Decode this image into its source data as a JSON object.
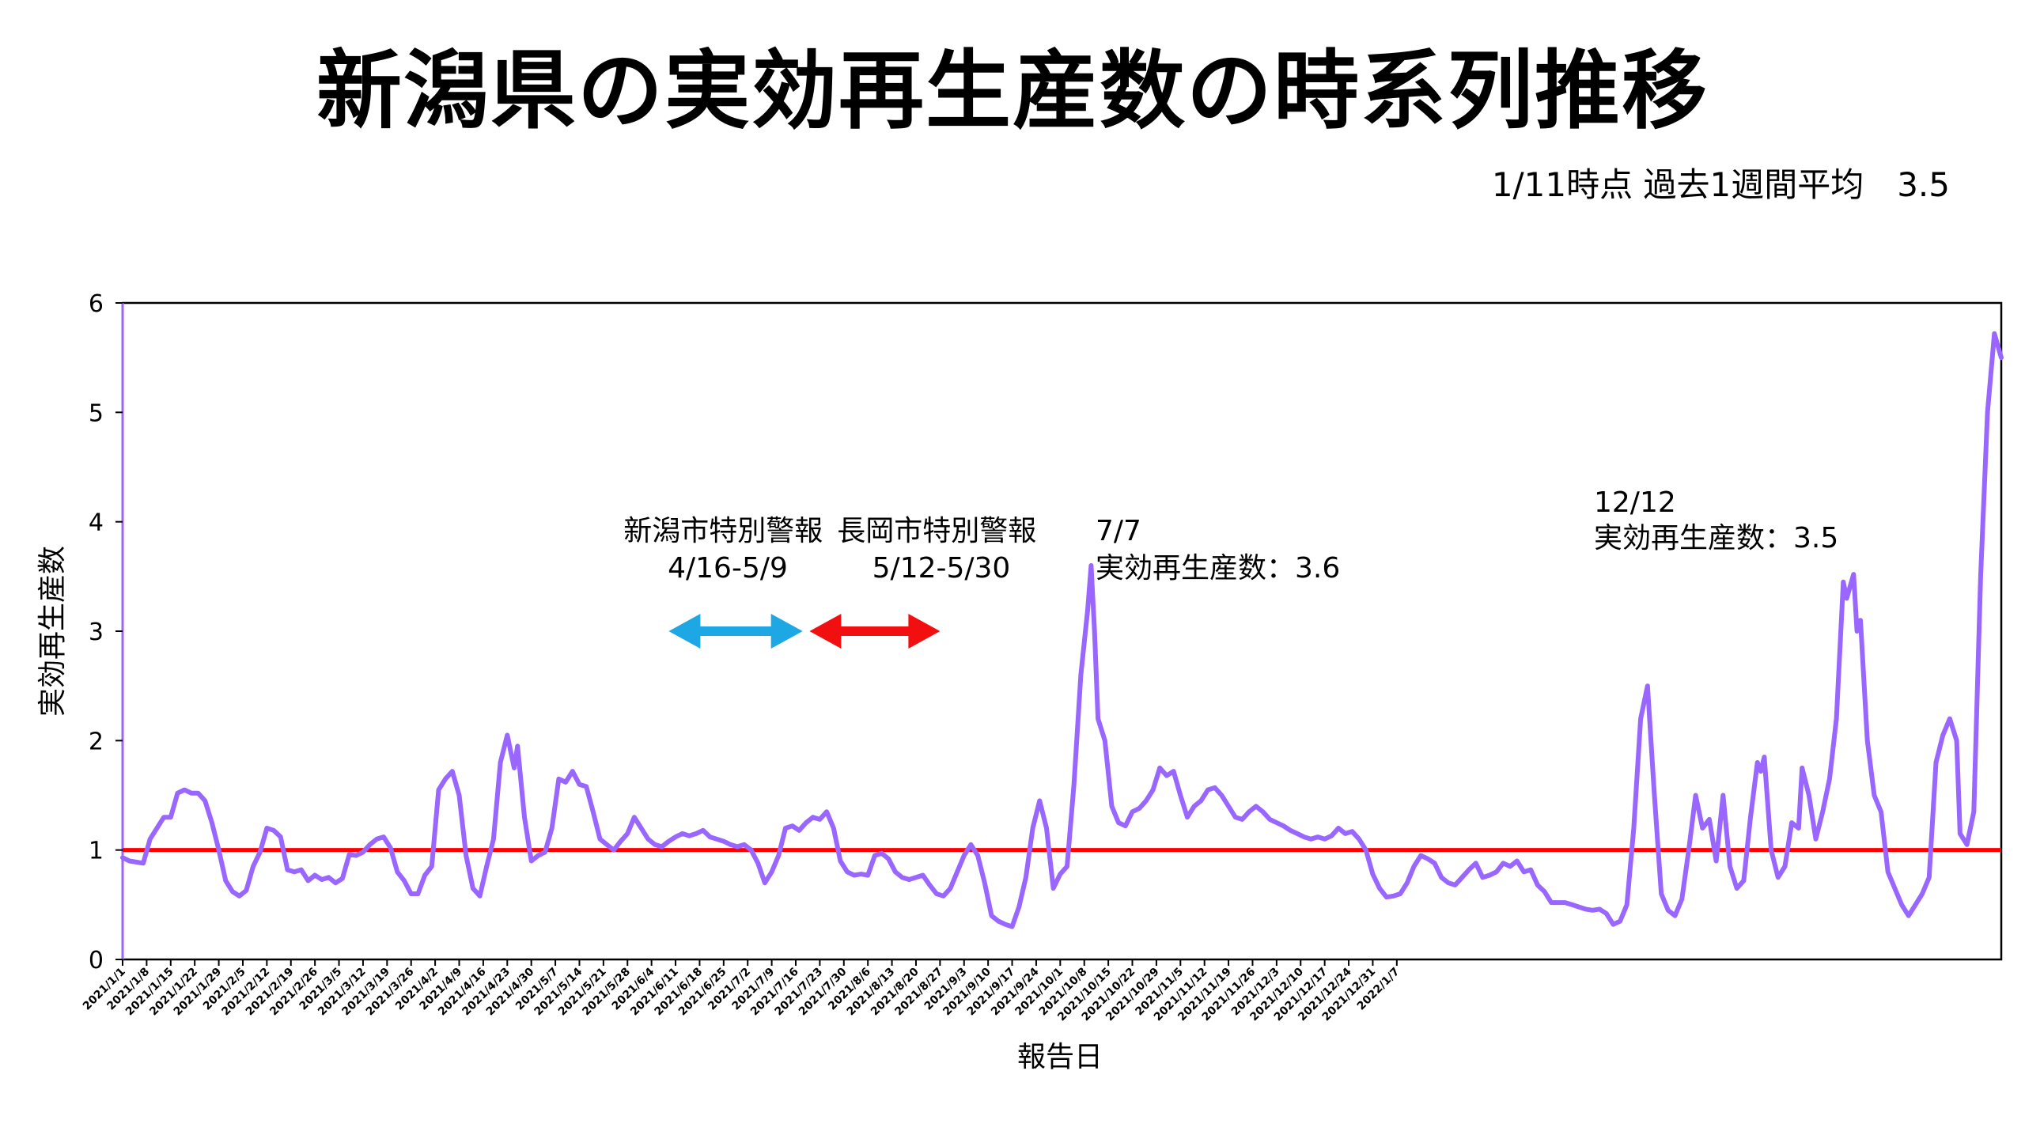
{
  "title": "新潟県の実効再生産数の時系列推移",
  "subtitle": "1/11時点 過去1週間平均　3.5",
  "chart_data": {
    "type": "line",
    "xlabel": "報告日",
    "ylabel": "実効再生産数",
    "ylim": [
      0,
      6
    ],
    "yticks": [
      0,
      1,
      2,
      3,
      4,
      5,
      6
    ],
    "xtick_labels": [
      "2021/1/1",
      "2021/1/8",
      "2021/1/15",
      "2021/1/22",
      "2021/1/29",
      "2021/2/5",
      "2021/2/12",
      "2021/2/19",
      "2021/2/26",
      "2021/3/5",
      "2021/3/12",
      "2021/3/19",
      "2021/3/26",
      "2021/4/2",
      "2021/4/9",
      "2021/4/16",
      "2021/4/23",
      "2021/4/30",
      "2021/5/7",
      "2021/5/14",
      "2021/5/21",
      "2021/5/28",
      "2021/6/4",
      "2021/6/11",
      "2021/6/18",
      "2021/6/25",
      "2021/7/2",
      "2021/7/9",
      "2021/7/16",
      "2021/7/23",
      "2021/7/30",
      "2021/8/6",
      "2021/8/13",
      "2021/8/20",
      "2021/8/27",
      "2021/9/3",
      "2021/9/10",
      "2021/9/17",
      "2021/9/24",
      "2021/10/1",
      "2021/10/8",
      "2021/10/15",
      "2021/10/22",
      "2021/10/29",
      "2021/11/5",
      "2021/11/12",
      "2021/11/19",
      "2021/11/26",
      "2021/12/3",
      "2021/12/10",
      "2021/12/17",
      "2021/12/24",
      "2021/12/31",
      "2022/1/7"
    ],
    "reference_line": {
      "y": 1,
      "color": "#ff0000"
    },
    "series": [
      {
        "color": "#9966ff",
        "points": [
          [
            0,
            0.93
          ],
          [
            2,
            0.9
          ],
          [
            6,
            0.88
          ],
          [
            8,
            1.1
          ],
          [
            10,
            1.2
          ],
          [
            12,
            1.3
          ],
          [
            14,
            1.3
          ],
          [
            16,
            1.52
          ],
          [
            18,
            1.55
          ],
          [
            20,
            1.52
          ],
          [
            22,
            1.52
          ],
          [
            24,
            1.45
          ],
          [
            26,
            1.25
          ],
          [
            28,
            1.0
          ],
          [
            30,
            0.72
          ],
          [
            32,
            0.62
          ],
          [
            34,
            0.58
          ],
          [
            36,
            0.63
          ],
          [
            38,
            0.85
          ],
          [
            40,
            0.98
          ],
          [
            42,
            1.2
          ],
          [
            44,
            1.18
          ],
          [
            46,
            1.12
          ],
          [
            48,
            0.82
          ],
          [
            50,
            0.8
          ],
          [
            52,
            0.82
          ],
          [
            54,
            0.72
          ],
          [
            56,
            0.77
          ],
          [
            58,
            0.73
          ],
          [
            60,
            0.75
          ],
          [
            62,
            0.7
          ],
          [
            64,
            0.74
          ],
          [
            66,
            0.96
          ],
          [
            68,
            0.95
          ],
          [
            70,
            0.98
          ],
          [
            72,
            1.05
          ],
          [
            74,
            1.1
          ],
          [
            76,
            1.12
          ],
          [
            78,
            1.02
          ],
          [
            80,
            0.8
          ],
          [
            82,
            0.72
          ],
          [
            84,
            0.6
          ],
          [
            86,
            0.6
          ],
          [
            88,
            0.77
          ],
          [
            90,
            0.85
          ],
          [
            92,
            1.55
          ],
          [
            94,
            1.65
          ],
          [
            96,
            1.72
          ],
          [
            98,
            1.5
          ],
          [
            100,
            0.95
          ],
          [
            102,
            0.65
          ],
          [
            104,
            0.58
          ],
          [
            106,
            0.85
          ],
          [
            108,
            1.1
          ],
          [
            110,
            1.8
          ],
          [
            112,
            2.05
          ],
          [
            114,
            1.75
          ],
          [
            115,
            1.95
          ],
          [
            117,
            1.3
          ],
          [
            119,
            0.9
          ],
          [
            121,
            0.95
          ],
          [
            123,
            0.98
          ],
          [
            125,
            1.2
          ],
          [
            127,
            1.65
          ],
          [
            129,
            1.62
          ],
          [
            131,
            1.72
          ],
          [
            133,
            1.6
          ],
          [
            135,
            1.58
          ],
          [
            137,
            1.35
          ],
          [
            139,
            1.1
          ],
          [
            141,
            1.05
          ],
          [
            143,
            1.0
          ],
          [
            145,
            1.08
          ],
          [
            147,
            1.15
          ],
          [
            149,
            1.3
          ],
          [
            151,
            1.2
          ],
          [
            153,
            1.1
          ],
          [
            155,
            1.05
          ],
          [
            157,
            1.03
          ],
          [
            159,
            1.08
          ],
          [
            161,
            1.12
          ],
          [
            163,
            1.15
          ],
          [
            165,
            1.13
          ],
          [
            167,
            1.15
          ],
          [
            169,
            1.18
          ],
          [
            171,
            1.12
          ],
          [
            173,
            1.1
          ],
          [
            175,
            1.08
          ],
          [
            177,
            1.05
          ],
          [
            179,
            1.03
          ],
          [
            181,
            1.05
          ],
          [
            183,
            1.0
          ],
          [
            185,
            0.88
          ],
          [
            187,
            0.7
          ],
          [
            189,
            0.8
          ],
          [
            191,
            0.95
          ],
          [
            193,
            1.2
          ],
          [
            195,
            1.22
          ],
          [
            197,
            1.18
          ],
          [
            199,
            1.25
          ],
          [
            201,
            1.3
          ],
          [
            203,
            1.28
          ],
          [
            205,
            1.35
          ],
          [
            207,
            1.2
          ],
          [
            209,
            0.9
          ],
          [
            211,
            0.8
          ],
          [
            213,
            0.77
          ],
          [
            215,
            0.78
          ],
          [
            217,
            0.77
          ],
          [
            219,
            0.95
          ],
          [
            221,
            0.97
          ],
          [
            223,
            0.92
          ],
          [
            225,
            0.8
          ],
          [
            227,
            0.75
          ],
          [
            229,
            0.73
          ],
          [
            231,
            0.75
          ],
          [
            233,
            0.77
          ],
          [
            235,
            0.68
          ],
          [
            237,
            0.6
          ],
          [
            239,
            0.58
          ],
          [
            241,
            0.65
          ],
          [
            243,
            0.8
          ],
          [
            245,
            0.95
          ],
          [
            247,
            1.05
          ],
          [
            249,
            0.95
          ],
          [
            251,
            0.7
          ],
          [
            253,
            0.4
          ],
          [
            255,
            0.35
          ],
          [
            257,
            0.32
          ],
          [
            259,
            0.3
          ],
          [
            261,
            0.48
          ],
          [
            263,
            0.75
          ],
          [
            265,
            1.2
          ],
          [
            267,
            1.45
          ],
          [
            269,
            1.2
          ],
          [
            271,
            0.65
          ],
          [
            273,
            0.78
          ],
          [
            275,
            0.85
          ],
          [
            277,
            1.6
          ],
          [
            279,
            2.6
          ],
          [
            281,
            3.2
          ],
          [
            282,
            3.6
          ],
          [
            283,
            3.0
          ],
          [
            284,
            2.2
          ],
          [
            286,
            2.0
          ],
          [
            288,
            1.4
          ],
          [
            290,
            1.25
          ],
          [
            292,
            1.22
          ],
          [
            294,
            1.35
          ],
          [
            296,
            1.38
          ],
          [
            298,
            1.45
          ],
          [
            300,
            1.55
          ],
          [
            302,
            1.75
          ],
          [
            304,
            1.68
          ],
          [
            306,
            1.72
          ],
          [
            308,
            1.5
          ],
          [
            310,
            1.3
          ],
          [
            312,
            1.4
          ],
          [
            314,
            1.45
          ],
          [
            316,
            1.55
          ],
          [
            318,
            1.57
          ],
          [
            320,
            1.5
          ],
          [
            322,
            1.4
          ],
          [
            324,
            1.3
          ],
          [
            326,
            1.28
          ],
          [
            328,
            1.35
          ],
          [
            330,
            1.4
          ],
          [
            332,
            1.35
          ],
          [
            334,
            1.28
          ],
          [
            336,
            1.25
          ],
          [
            338,
            1.22
          ],
          [
            340,
            1.18
          ],
          [
            342,
            1.15
          ],
          [
            344,
            1.12
          ],
          [
            346,
            1.1
          ],
          [
            348,
            1.12
          ],
          [
            350,
            1.1
          ],
          [
            352,
            1.13
          ],
          [
            354,
            1.2
          ],
          [
            356,
            1.15
          ],
          [
            358,
            1.17
          ],
          [
            360,
            1.1
          ],
          [
            362,
            1.0
          ],
          [
            364,
            0.78
          ],
          [
            366,
            0.65
          ],
          [
            368,
            0.57
          ],
          [
            370,
            0.58
          ],
          [
            372,
            0.6
          ],
          [
            374,
            0.7
          ],
          [
            376,
            0.85
          ],
          [
            378,
            0.95
          ],
          [
            380,
            0.92
          ],
          [
            382,
            0.88
          ],
          [
            384,
            0.75
          ],
          [
            386,
            0.7
          ],
          [
            388,
            0.68
          ],
          [
            390,
            0.75
          ],
          [
            392,
            0.82
          ],
          [
            394,
            0.88
          ],
          [
            396,
            0.75
          ],
          [
            398,
            0.77
          ],
          [
            400,
            0.8
          ],
          [
            402,
            0.88
          ],
          [
            404,
            0.85
          ],
          [
            406,
            0.9
          ],
          [
            408,
            0.8
          ],
          [
            410,
            0.82
          ],
          [
            412,
            0.68
          ],
          [
            414,
            0.62
          ],
          [
            416,
            0.52
          ],
          [
            418,
            0.52
          ],
          [
            420,
            0.52
          ],
          [
            422,
            0.5
          ],
          [
            424,
            0.48
          ],
          [
            426,
            0.46
          ],
          [
            428,
            0.45
          ],
          [
            430,
            0.46
          ],
          [
            432,
            0.42
          ],
          [
            434,
            0.32
          ],
          [
            436,
            0.35
          ],
          [
            438,
            0.5
          ],
          [
            440,
            1.2
          ],
          [
            442,
            2.2
          ],
          [
            444,
            2.5
          ],
          [
            446,
            1.5
          ],
          [
            448,
            0.6
          ],
          [
            450,
            0.45
          ],
          [
            452,
            0.4
          ],
          [
            454,
            0.55
          ],
          [
            456,
            1.0
          ],
          [
            458,
            1.5
          ],
          [
            460,
            1.2
          ],
          [
            462,
            1.28
          ],
          [
            464,
            0.9
          ],
          [
            466,
            1.5
          ],
          [
            468,
            0.85
          ],
          [
            470,
            0.65
          ],
          [
            472,
            0.72
          ],
          [
            474,
            1.3
          ],
          [
            476,
            1.8
          ],
          [
            477,
            1.72
          ],
          [
            478,
            1.85
          ],
          [
            480,
            1.0
          ],
          [
            482,
            0.75
          ],
          [
            484,
            0.85
          ],
          [
            486,
            1.25
          ],
          [
            488,
            1.2
          ],
          [
            489,
            1.75
          ],
          [
            491,
            1.5
          ],
          [
            493,
            1.1
          ],
          [
            495,
            1.35
          ],
          [
            497,
            1.65
          ],
          [
            499,
            2.2
          ],
          [
            501,
            3.45
          ],
          [
            502,
            3.3
          ],
          [
            504,
            3.52
          ],
          [
            505,
            3.0
          ],
          [
            506,
            3.1
          ],
          [
            508,
            2.0
          ],
          [
            510,
            1.5
          ],
          [
            512,
            1.35
          ],
          [
            514,
            0.8
          ],
          [
            516,
            0.65
          ],
          [
            518,
            0.5
          ],
          [
            520,
            0.4
          ],
          [
            522,
            0.5
          ],
          [
            524,
            0.6
          ],
          [
            526,
            0.75
          ],
          [
            528,
            1.8
          ],
          [
            530,
            2.05
          ],
          [
            532,
            2.2
          ],
          [
            534,
            2.0
          ],
          [
            535,
            1.15
          ],
          [
            537,
            1.05
          ],
          [
            539,
            1.35
          ],
          [
            541,
            3.5
          ],
          [
            543,
            5.0
          ],
          [
            545,
            5.72
          ],
          [
            547,
            5.5
          ]
        ]
      }
    ],
    "annotations": [
      {
        "lines": [
          "新潟市特別警報",
          "4/16-5/9"
        ]
      },
      {
        "lines": [
          "長岡市特別警報",
          "5/12-5/30"
        ]
      },
      {
        "lines": [
          "7/7",
          "実効再生産数：3.6"
        ]
      },
      {
        "lines": [
          "12/12",
          "実効再生産数：3.5"
        ]
      }
    ],
    "range_arrows": [
      {
        "start": 159,
        "end": 198,
        "color": "#1ea7e5"
      },
      {
        "start": 200,
        "end": 238,
        "color": "#f20f0f"
      }
    ]
  }
}
